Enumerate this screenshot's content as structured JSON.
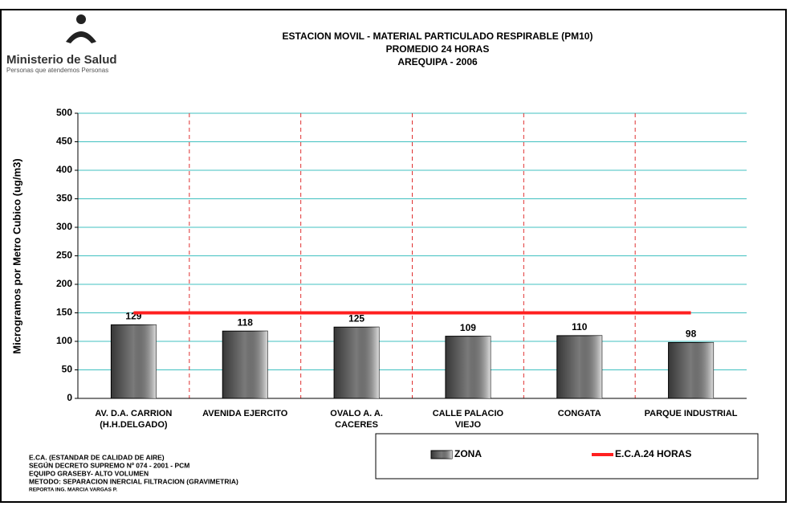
{
  "chart_data": {
    "type": "bar",
    "organization": "Ministerio de Salud",
    "organization_tagline": "Personas que atendemos Personas",
    "title": "ESTACION MOVIL - MATERIAL PARTICULADO RESPIRABLE  (PM10)",
    "subtitle": "PROMEDIO 24 HORAS",
    "subtitle2": "AREQUIPA - 2006",
    "y_label": "Microgramos por Metro Cubico (ug/m3)",
    "categories": [
      "AV. D.A. CARRION\n(H.H.DELGADO)",
      "AVENIDA EJERCITO",
      "OVALO A. A.\nCACERES",
      "CALLE PALACIO\nVIEJO",
      "CONGATA",
      "PARQUE INDUSTRIAL"
    ],
    "series": [
      {
        "name": "ZONA",
        "type": "bar",
        "color": "#7a7a7a",
        "values": [
          129,
          118,
          125,
          109,
          110,
          98
        ]
      },
      {
        "name": "E.C.A.24 HORAS",
        "type": "line",
        "color": "#ff2020",
        "values": [
          150,
          150,
          150,
          150,
          150,
          150
        ]
      }
    ],
    "ylim": [
      0,
      500
    ],
    "yticks": [
      0,
      50,
      100,
      150,
      200,
      250,
      300,
      350,
      400,
      450,
      500
    ],
    "grid": true,
    "grid_color": "#40c0c0",
    "separator_color": "#e03030",
    "notes": [
      "E.CA. (ESTANDAR DE CALIDAD DE AIRE)",
      "SEGÚN DECRETO SUPREMO Nº 074 - 2001 - PCM",
      "EQUIPO GRASEBY- ALTO VOLUMEN",
      "METODO: SEPARACION INERCIAL FILTRACION (GRAVIMETRIA)",
      "REPORTA ING. MARCIA VARGAS P."
    ]
  }
}
